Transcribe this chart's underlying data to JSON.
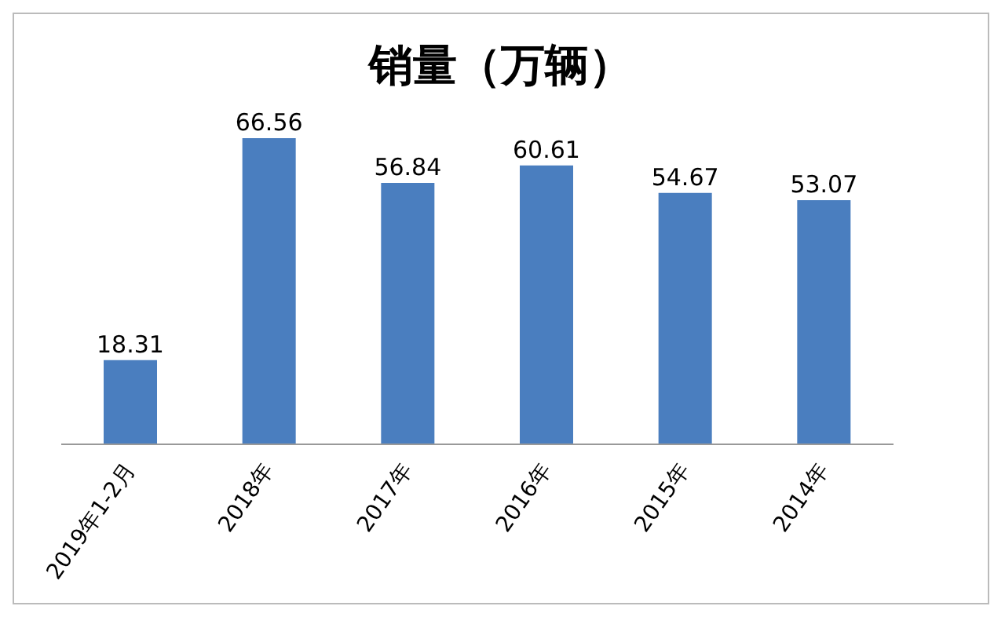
{
  "chart_data": {
    "type": "bar",
    "title": "销量（万辆）",
    "categories": [
      "2019年1-2月",
      "2018年",
      "2017年",
      "2016年",
      "2015年",
      "2014年"
    ],
    "values": [
      18.31,
      66.56,
      56.84,
      60.61,
      54.67,
      53.07
    ],
    "color": "#4a7ebf",
    "data_labels": true
  }
}
